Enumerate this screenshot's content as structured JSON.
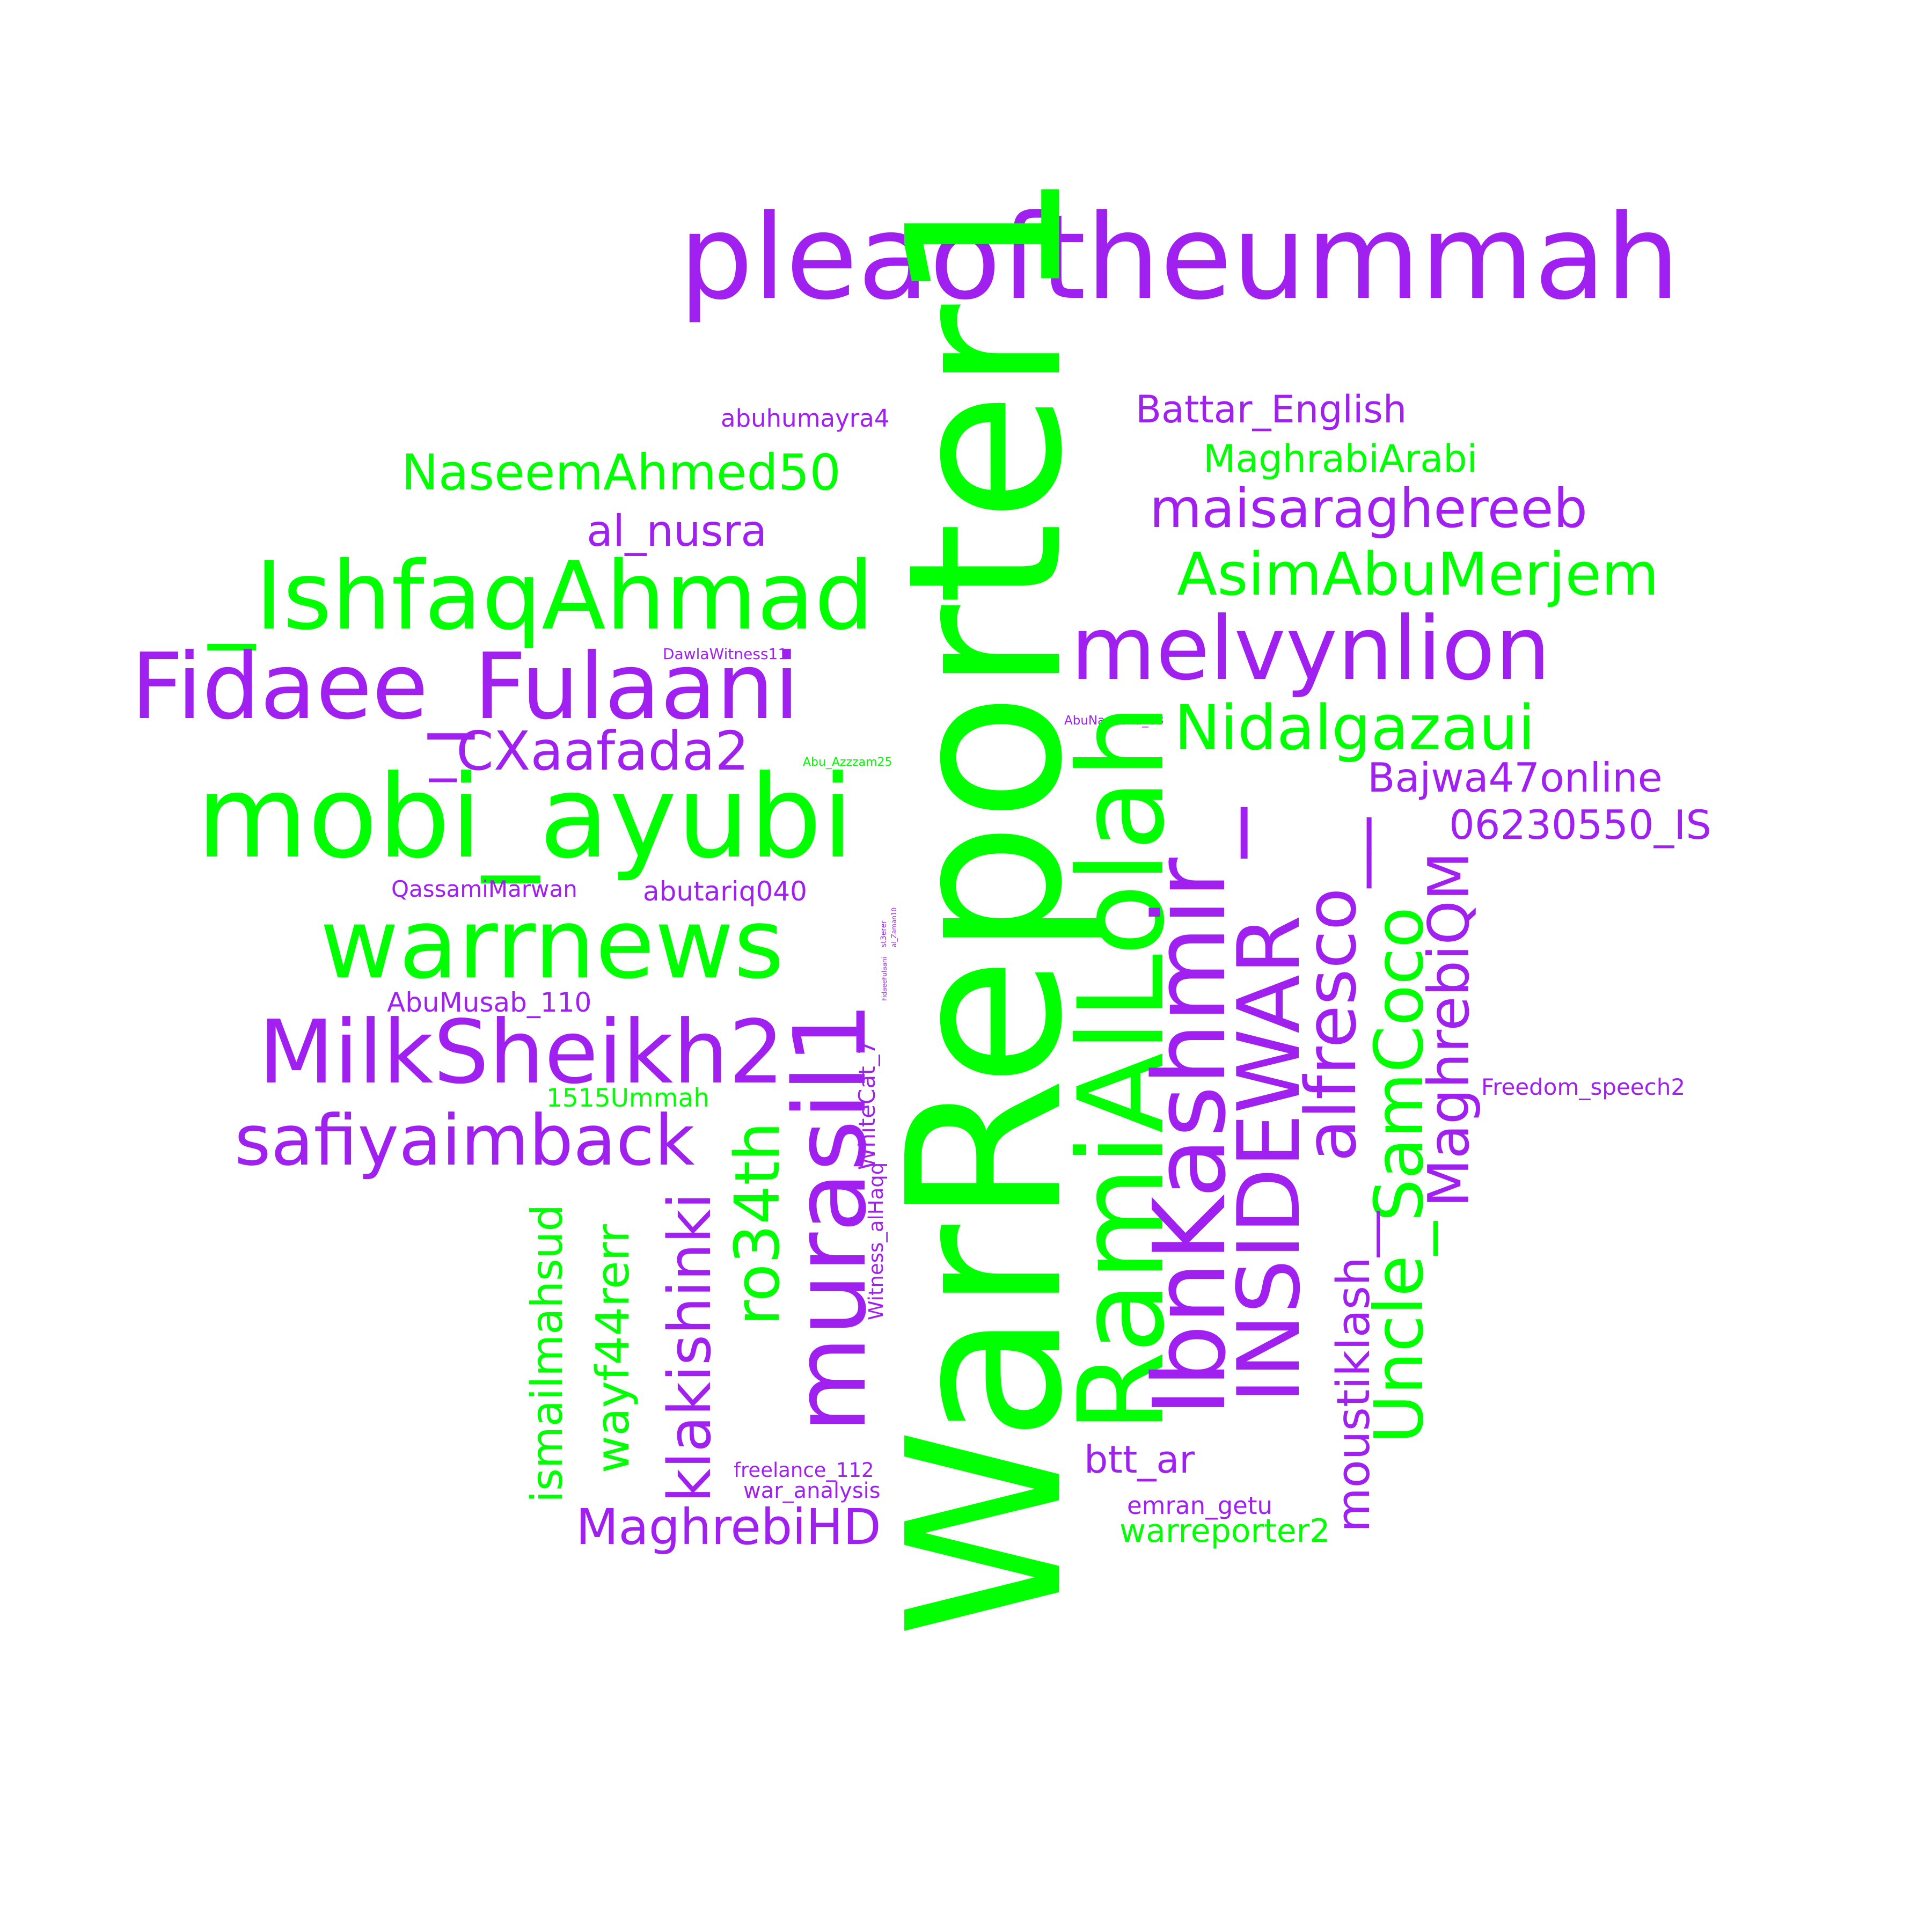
{
  "colors": {
    "purple": "#a020f0",
    "green": "#00ff00",
    "background": "#ffffff"
  },
  "words": {
    "pleaoftheummah": "pleaoftheummah",
    "WarReporter1": "WarReporter1",
    "abuhumayra4": "abuhumayra4",
    "NaseemAhmed50": "NaseemAhmed50",
    "al_nusra": "al_nusra",
    "IshfaqAhmad": "_IshfaqAhmad",
    "Fidaee_Fulaani": "Fidaee_Fulaani",
    "DawlaWitness11": "DawlaWitness11",
    "CXaafada2": "_CXaafada2",
    "mobi_ayubi": "mobi_ayubi",
    "Abu_Azzzam25": "Abu_Azzzam25",
    "QassamiMarwan": "QassamiMarwan",
    "abutariq040": "abutariq040",
    "warrnews": "warrnews",
    "AbuMusab_110": "AbuMusab_110",
    "MilkSheikh2": "MilkSheikh2",
    "1515Ummah": "1515Ummah",
    "safiyaimback": "safiyaimback",
    "ismailmahsud": "ismailmahsud",
    "wayf44rerr": "wayf44rerr",
    "klakishinki": "klakishinki",
    "ro34th": "ro34th",
    "murasil1": "murasil1",
    "WhiteCat_7": "WhiteCat_7",
    "Witness_alHaqq": "Witness_alHaqq",
    "tiny1": "st3erer",
    "tiny2": "al_Zaman10",
    "tiny3": "FidaeeFulaani",
    "freelance_112": "freelance_112",
    "war_analysis": "war_analysis",
    "MaghrebiHD": "MaghrebiHD",
    "RamiAlLolah": "RamiAlLolah",
    "IbnKashmir": "IbnKashmir_",
    "INSIDEWAR": "INSIDEWAR",
    "alfresco": "alfresco__",
    "Uncle_SamCoco": "Uncle_SamCoco",
    "moustiklash": "moustiklash__",
    "MaghrebiQM": "MaghrebiQM",
    "Battar_English": "Battar_English",
    "MaghrabiArabi": "MaghrabiArabi",
    "maisaraghereeb": "maisaraghereeb",
    "AsimAbuMerjem": "AsimAbuMerjem",
    "melvynlion": "melvynlion",
    "AbuNaseeha_03": "AbuNaseeha_03",
    "Nidalgazaui": "Nidalgazaui",
    "Bajwa47online": "Bajwa47online",
    "06230550_IS": "06230550_IS",
    "Freedom_speech2": "Freedom_speech2",
    "btt_ar": "btt_ar",
    "emran_getu": "emran_getu",
    "warreporter2": "warreporter2"
  }
}
